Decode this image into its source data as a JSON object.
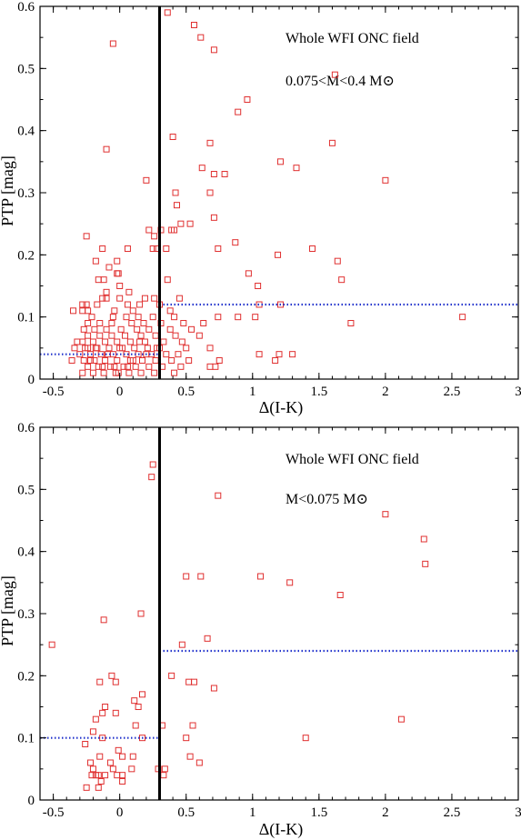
{
  "colors": {
    "marker": "#e03030",
    "dotted_line": "#2233cc",
    "axis": "#000000",
    "vertical_line": "#000000"
  },
  "chart_data": [
    {
      "type": "scatter",
      "title": "",
      "xlabel": "Δ(I-K)",
      "ylabel": "PTP [mag]",
      "xlim": [
        -0.6,
        3.0
      ],
      "ylim": [
        0,
        0.6
      ],
      "xticks": [
        -0.5,
        0,
        0.5,
        1,
        1.5,
        2,
        2.5,
        3
      ],
      "xtick_labels": [
        "-0.5",
        "0",
        "0.5",
        "1",
        "1.5",
        "2",
        "2.5",
        "3"
      ],
      "yticks": [
        0,
        0.1,
        0.2,
        0.3,
        0.4,
        0.5,
        0.6
      ],
      "ytick_labels": [
        "0",
        "0.1",
        "0.2",
        "0.3",
        "0.4",
        "0.5",
        "0.6"
      ],
      "grid": false,
      "legend": "none",
      "annotations": [
        "Whole WFI ONC field",
        "0.075<M<0.4 M⊙"
      ],
      "marker": "open-square",
      "vertical_line_x": 0.3,
      "threshold_lines": [
        {
          "x_from": -0.6,
          "x_to": 0.3,
          "y": 0.04
        },
        {
          "x_from": 0.3,
          "x_to": 3.0,
          "y": 0.12
        }
      ],
      "points": [
        [
          -0.05,
          0.54
        ],
        [
          0.36,
          0.59
        ],
        [
          0.56,
          0.57
        ],
        [
          0.61,
          0.55
        ],
        [
          0.71,
          0.53
        ],
        [
          1.62,
          0.49
        ],
        [
          0.96,
          0.45
        ],
        [
          0.89,
          0.43
        ],
        [
          -0.1,
          0.37
        ],
        [
          0.4,
          0.39
        ],
        [
          0.68,
          0.38
        ],
        [
          1.6,
          0.38
        ],
        [
          1.21,
          0.35
        ],
        [
          0.62,
          0.34
        ],
        [
          0.71,
          0.33
        ],
        [
          0.79,
          0.33
        ],
        [
          1.33,
          0.34
        ],
        [
          0.2,
          0.32
        ],
        [
          2.0,
          0.32
        ],
        [
          0.42,
          0.3
        ],
        [
          0.68,
          0.3
        ],
        [
          0.43,
          0.28
        ],
        [
          0.71,
          0.26
        ],
        [
          0.46,
          0.25
        ],
        [
          0.53,
          0.25
        ],
        [
          0.22,
          0.24
        ],
        [
          0.31,
          0.24
        ],
        [
          0.39,
          0.24
        ],
        [
          0.41,
          0.24
        ],
        [
          0.26,
          0.23
        ],
        [
          -0.25,
          0.23
        ],
        [
          0.87,
          0.22
        ],
        [
          0.06,
          0.21
        ],
        [
          0.25,
          0.21
        ],
        [
          0.28,
          0.21
        ],
        [
          0.35,
          0.21
        ],
        [
          0.74,
          0.21
        ],
        [
          1.45,
          0.21
        ],
        [
          -0.13,
          0.21
        ],
        [
          1.19,
          0.2
        ],
        [
          1.64,
          0.19
        ],
        [
          -0.18,
          0.19
        ],
        [
          -0.02,
          0.19
        ],
        [
          -0.08,
          0.18
        ],
        [
          -0.02,
          0.17
        ],
        [
          0.97,
          0.17
        ],
        [
          -0.01,
          0.17
        ],
        [
          -0.16,
          0.16
        ],
        [
          -0.12,
          0.16
        ],
        [
          0.36,
          0.16
        ],
        [
          1.67,
          0.16
        ],
        [
          0.0,
          0.15
        ],
        [
          -0.1,
          0.14
        ],
        [
          0.07,
          0.14
        ],
        [
          1.04,
          0.15
        ],
        [
          -0.13,
          0.13
        ],
        [
          -0.1,
          0.13
        ],
        [
          0.0,
          0.13
        ],
        [
          0.19,
          0.13
        ],
        [
          0.26,
          0.13
        ],
        [
          0.45,
          0.13
        ],
        [
          0.15,
          0.12
        ],
        [
          -0.28,
          0.12
        ],
        [
          -0.25,
          0.12
        ],
        [
          -0.17,
          0.12
        ],
        [
          0.06,
          0.12
        ],
        [
          0.3,
          0.12
        ],
        [
          1.05,
          0.12
        ],
        [
          1.21,
          0.12
        ],
        [
          -0.28,
          0.11
        ],
        [
          -0.24,
          0.11
        ],
        [
          -0.04,
          0.11
        ],
        [
          0.1,
          0.11
        ],
        [
          0.38,
          0.11
        ],
        [
          -0.35,
          0.11
        ],
        [
          0.41,
          0.1
        ],
        [
          0.74,
          0.1
        ],
        [
          0.89,
          0.1
        ],
        [
          1.02,
          0.1
        ],
        [
          1.74,
          0.09
        ],
        [
          2.58,
          0.1
        ],
        [
          -0.21,
          0.1
        ],
        [
          -0.05,
          0.1
        ],
        [
          0.05,
          0.1
        ],
        [
          0.14,
          0.1
        ],
        [
          0.25,
          0.1
        ],
        [
          -0.24,
          0.09
        ],
        [
          -0.15,
          0.09
        ],
        [
          -0.06,
          0.09
        ],
        [
          0.09,
          0.09
        ],
        [
          0.18,
          0.09
        ],
        [
          0.31,
          0.09
        ],
        [
          0.48,
          0.09
        ],
        [
          0.63,
          0.09
        ],
        [
          -0.27,
          0.08
        ],
        [
          -0.19,
          0.08
        ],
        [
          -0.1,
          0.08
        ],
        [
          0.01,
          0.08
        ],
        [
          0.13,
          0.08
        ],
        [
          0.22,
          0.08
        ],
        [
          0.38,
          0.08
        ],
        [
          0.54,
          0.08
        ],
        [
          -0.24,
          0.07
        ],
        [
          -0.15,
          0.07
        ],
        [
          -0.06,
          0.07
        ],
        [
          0.04,
          0.07
        ],
        [
          0.16,
          0.07
        ],
        [
          0.27,
          0.07
        ],
        [
          0.42,
          0.07
        ],
        [
          0.6,
          0.07
        ],
        [
          -0.32,
          0.06
        ],
        [
          -0.28,
          0.06
        ],
        [
          -0.2,
          0.06
        ],
        [
          -0.11,
          0.06
        ],
        [
          -0.02,
          0.06
        ],
        [
          0.08,
          0.06
        ],
        [
          0.19,
          0.06
        ],
        [
          0.33,
          0.06
        ],
        [
          0.47,
          0.06
        ],
        [
          -0.34,
          0.05
        ],
        [
          -0.26,
          0.05
        ],
        [
          -0.17,
          0.05
        ],
        [
          -0.08,
          0.05
        ],
        [
          0.02,
          0.05
        ],
        [
          0.11,
          0.05
        ],
        [
          0.21,
          0.05
        ],
        [
          0.3,
          0.05
        ],
        [
          0.5,
          0.05
        ],
        [
          0.68,
          0.05
        ],
        [
          -0.3,
          0.04
        ],
        [
          -0.22,
          0.04
        ],
        [
          -0.14,
          0.04
        ],
        [
          -0.05,
          0.04
        ],
        [
          0.05,
          0.04
        ],
        [
          0.14,
          0.04
        ],
        [
          0.24,
          0.04
        ],
        [
          0.35,
          0.04
        ],
        [
          0.44,
          0.04
        ],
        [
          1.2,
          0.04
        ],
        [
          1.3,
          0.04
        ],
        [
          1.05,
          0.04
        ],
        [
          -0.36,
          0.03
        ],
        [
          -0.27,
          0.03
        ],
        [
          -0.19,
          0.03
        ],
        [
          -0.11,
          0.03
        ],
        [
          -0.02,
          0.03
        ],
        [
          0.08,
          0.03
        ],
        [
          0.17,
          0.03
        ],
        [
          0.27,
          0.03
        ],
        [
          0.39,
          0.03
        ],
        [
          0.52,
          0.03
        ],
        [
          0.75,
          0.03
        ],
        [
          1.17,
          0.03
        ],
        [
          -0.24,
          0.02
        ],
        [
          -0.16,
          0.02
        ],
        [
          -0.07,
          0.02
        ],
        [
          0.03,
          0.02
        ],
        [
          0.12,
          0.02
        ],
        [
          0.22,
          0.02
        ],
        [
          0.32,
          0.02
        ],
        [
          0.46,
          0.02
        ],
        [
          0.68,
          0.02
        ],
        [
          0.72,
          0.02
        ],
        [
          -0.28,
          0.01
        ],
        [
          -0.2,
          0.01
        ],
        [
          -0.12,
          0.01
        ],
        [
          -0.03,
          0.01
        ],
        [
          0.07,
          0.01
        ],
        [
          0.16,
          0.01
        ],
        [
          0.26,
          0.01
        ],
        [
          0.41,
          0.01
        ],
        [
          -0.22,
          0.03
        ],
        [
          -0.13,
          0.02
        ],
        [
          -0.04,
          0.02
        ],
        [
          0.1,
          0.03
        ],
        [
          0.2,
          0.04
        ],
        [
          -0.18,
          0.05
        ],
        [
          0.0,
          0.05
        ],
        [
          0.15,
          0.06
        ],
        [
          -0.09,
          0.04
        ],
        [
          0.06,
          0.02
        ],
        [
          0.28,
          0.05
        ],
        [
          -0.24,
          0.05
        ],
        [
          -0.01,
          0.01
        ]
      ]
    },
    {
      "type": "scatter",
      "title": "",
      "xlabel": "Δ(I-K)",
      "ylabel": "PTP [mag]",
      "xlim": [
        -0.6,
        3.0
      ],
      "ylim": [
        0,
        0.6
      ],
      "xticks": [
        -0.5,
        0,
        0.5,
        1,
        1.5,
        2,
        2.5,
        3
      ],
      "xtick_labels": [
        "-0.5",
        "0",
        "0.5",
        "1",
        "1.5",
        "2",
        "2.5",
        "3"
      ],
      "yticks": [
        0,
        0.1,
        0.2,
        0.3,
        0.4,
        0.5,
        0.6
      ],
      "ytick_labels": [
        "0",
        "0.1",
        "0.2",
        "0.3",
        "0.4",
        "0.5",
        "0.6"
      ],
      "grid": false,
      "legend": "none",
      "annotations": [
        "Whole WFI ONC field",
        "M<0.075 M⊙"
      ],
      "marker": "open-square",
      "vertical_line_x": 0.3,
      "threshold_lines": [
        {
          "x_from": -0.6,
          "x_to": 0.3,
          "y": 0.1
        },
        {
          "x_from": 0.3,
          "x_to": 3.0,
          "y": 0.24
        }
      ],
      "points": [
        [
          0.25,
          0.54
        ],
        [
          0.24,
          0.52
        ],
        [
          0.74,
          0.49
        ],
        [
          2.0,
          0.46
        ],
        [
          2.29,
          0.42
        ],
        [
          2.3,
          0.38
        ],
        [
          0.5,
          0.36
        ],
        [
          0.61,
          0.36
        ],
        [
          1.06,
          0.36
        ],
        [
          1.28,
          0.35
        ],
        [
          1.66,
          0.33
        ],
        [
          0.16,
          0.3
        ],
        [
          -0.12,
          0.29
        ],
        [
          0.66,
          0.26
        ],
        [
          0.47,
          0.25
        ],
        [
          -0.51,
          0.25
        ],
        [
          0.39,
          0.2
        ],
        [
          -0.06,
          0.2
        ],
        [
          -0.03,
          0.19
        ],
        [
          -0.15,
          0.19
        ],
        [
          0.52,
          0.19
        ],
        [
          0.56,
          0.19
        ],
        [
          0.71,
          0.18
        ],
        [
          0.17,
          0.17
        ],
        [
          0.11,
          0.16
        ],
        [
          0.14,
          0.15
        ],
        [
          -0.11,
          0.15
        ],
        [
          -0.03,
          0.14
        ],
        [
          -0.13,
          0.14
        ],
        [
          -0.18,
          0.13
        ],
        [
          -0.2,
          0.11
        ],
        [
          0.12,
          0.12
        ],
        [
          0.32,
          0.12
        ],
        [
          0.55,
          0.12
        ],
        [
          -0.13,
          0.1
        ],
        [
          0.17,
          0.1
        ],
        [
          0.5,
          0.1
        ],
        [
          1.4,
          0.1
        ],
        [
          2.12,
          0.13
        ],
        [
          -0.26,
          0.09
        ],
        [
          -0.01,
          0.08
        ],
        [
          -0.15,
          0.07
        ],
        [
          0.02,
          0.07
        ],
        [
          0.1,
          0.07
        ],
        [
          0.53,
          0.07
        ],
        [
          -0.22,
          0.06
        ],
        [
          -0.07,
          0.06
        ],
        [
          0.6,
          0.06
        ],
        [
          -0.2,
          0.05
        ],
        [
          0.09,
          0.05
        ],
        [
          0.29,
          0.05
        ],
        [
          0.34,
          0.05
        ],
        [
          -0.16,
          0.04
        ],
        [
          -0.11,
          0.04
        ],
        [
          -0.18,
          0.04
        ],
        [
          -0.02,
          0.04
        ],
        [
          0.02,
          0.04
        ],
        [
          0.33,
          0.04
        ],
        [
          -0.14,
          0.03
        ],
        [
          0.02,
          0.03
        ],
        [
          -0.16,
          0.02
        ],
        [
          -0.25,
          0.02
        ],
        [
          -0.21,
          0.04
        ],
        [
          -0.05,
          0.05
        ]
      ]
    }
  ]
}
